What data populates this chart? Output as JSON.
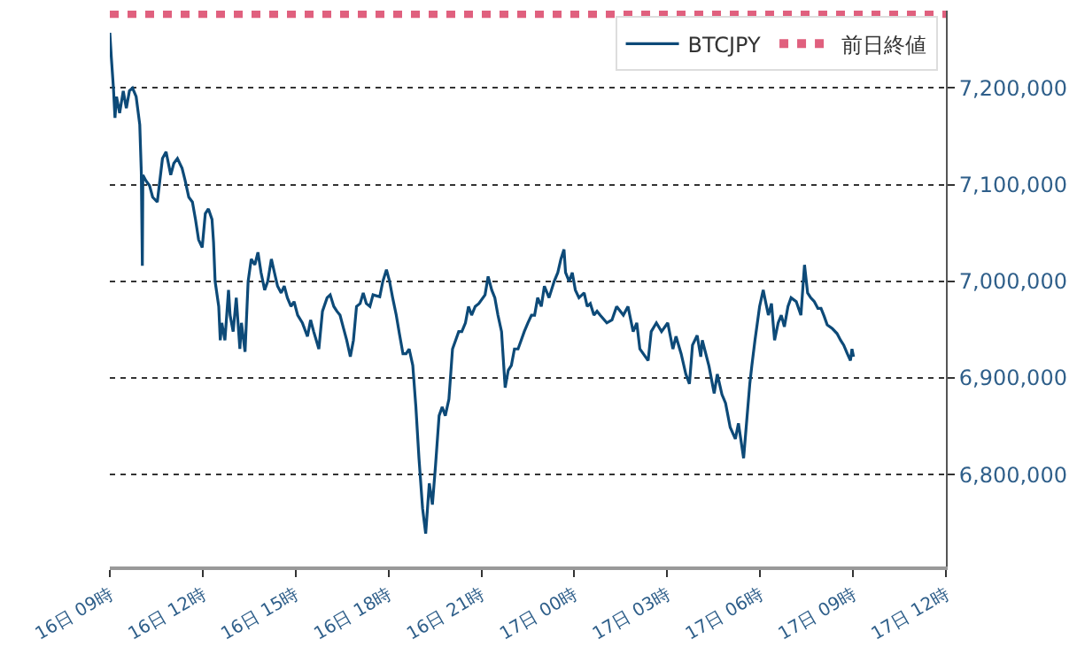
{
  "chart_data": {
    "type": "line",
    "series": [
      {
        "name": "BTCJPY",
        "color": "#0d4a78",
        "x": [
          "--01-16T09:00",
          "--01-16T09:03",
          "--01-16T09:07",
          "--01-16T09:10",
          "--01-16T09:13",
          "--01-16T09:19",
          "--01-16T09:26",
          "--01-16T09:32",
          "--01-16T09:38",
          "--01-16T09:44",
          "--01-16T09:51",
          "--01-16T09:58",
          "--01-16T10:01",
          "--01-16T10:03",
          "--01-16T10:04",
          "--01-16T10:10",
          "--01-16T10:17",
          "--01-16T10:23",
          "--01-16T10:32",
          "--01-16T10:42",
          "--01-16T10:49",
          "--01-16T10:58",
          "--01-16T11:04",
          "--01-16T11:11",
          "--01-16T11:20",
          "--01-16T11:26",
          "--01-16T11:33",
          "--01-16T11:40",
          "--01-16T11:46",
          "--01-16T11:52",
          "--01-16T11:59",
          "--01-16T12:05",
          "--01-16T12:11",
          "--01-16T12:18",
          "--01-16T12:21",
          "--01-16T12:24",
          "--01-16T12:31",
          "--01-16T12:34",
          "--01-16T12:37",
          "--01-16T12:43",
          "--01-16T12:50",
          "--01-16T12:53",
          "--01-16T12:59",
          "--01-16T13:05",
          "--01-16T13:12",
          "--01-16T13:15",
          "--01-16T13:22",
          "--01-16T13:28",
          "--01-16T13:34",
          "--01-16T13:41",
          "--01-16T13:47",
          "--01-16T13:53",
          "--01-16T14:00",
          "--01-16T14:06",
          "--01-16T14:13",
          "--01-16T14:19",
          "--01-16T14:25",
          "--01-16T14:32",
          "--01-16T14:38",
          "--01-16T14:44",
          "--01-16T14:51",
          "--01-16T14:57",
          "--01-16T15:04",
          "--01-16T15:13",
          "--01-16T15:23",
          "--01-16T15:29",
          "--01-16T15:35",
          "--01-16T15:45",
          "--01-16T15:52",
          "--01-16T16:01",
          "--01-16T16:07",
          "--01-16T16:14",
          "--01-16T16:20",
          "--01-16T16:26",
          "--01-16T16:33",
          "--01-16T16:39",
          "--01-16T16:46",
          "--01-16T16:52",
          "--01-16T16:58",
          "--01-16T17:05",
          "--01-16T17:11",
          "--01-16T17:17",
          "--01-16T17:24",
          "--01-16T17:30",
          "--01-16T17:43",
          "--01-16T17:49",
          "--01-16T17:56",
          "--01-16T18:02",
          "--01-16T18:08",
          "--01-16T18:15",
          "--01-16T18:21",
          "--01-16T18:28",
          "--01-16T18:34",
          "--01-16T18:40",
          "--01-16T18:47",
          "--01-16T18:53",
          "--01-16T18:59",
          "--01-16T19:06",
          "--01-16T19:12",
          "--01-16T19:19",
          "--01-16T19:25",
          "--01-16T19:31",
          "--01-16T19:38",
          "--01-16T19:44",
          "--01-16T19:50",
          "--01-16T19:57",
          "--01-16T20:04",
          "--01-16T20:10",
          "--01-16T20:16",
          "--01-16T20:22",
          "--01-16T20:29",
          "--01-16T20:35",
          "--01-16T20:41",
          "--01-16T20:48",
          "--01-16T20:55",
          "--01-16T21:07",
          "--01-16T21:13",
          "--01-16T21:20",
          "--01-16T21:26",
          "--01-16T21:32",
          "--01-16T21:39",
          "--01-16T21:46",
          "--01-16T21:52",
          "--01-16T21:58",
          "--01-16T22:04",
          "--01-16T22:11",
          "--01-16T22:17",
          "--01-16T22:23",
          "--01-16T22:30",
          "--01-16T22:37",
          "--01-16T22:43",
          "--01-16T22:49",
          "--01-16T22:56",
          "--01-16T23:02",
          "--01-16T23:11",
          "--01-16T23:21",
          "--01-16T23:28",
          "--01-16T23:34",
          "--01-16T23:40",
          "--01-16T23:43",
          "--01-16T23:50",
          "--01-16T23:56",
          "--01-17T00:02",
          "--01-17T00:09",
          "--01-17T00:19",
          "--01-17T00:25",
          "--01-17T00:31",
          "--01-17T00:38",
          "--01-17T00:44",
          "--01-17T00:50",
          "--01-17T01:03",
          "--01-17T01:13",
          "--01-17T01:22",
          "--01-17T01:35",
          "--01-17T01:44",
          "--01-17T01:54",
          "--01-17T02:01",
          "--01-17T02:07",
          "--01-17T02:23",
          "--01-17T02:29",
          "--01-17T02:39",
          "--01-17T02:49",
          "--01-17T03:01",
          "--01-17T03:11",
          "--01-17T03:17",
          "--01-17T03:27",
          "--01-17T03:36",
          "--01-17T03:43",
          "--01-17T03:49",
          "--01-17T03:58",
          "--01-17T04:05",
          "--01-17T04:08",
          "--01-17T04:21",
          "--01-17T04:31",
          "--01-17T04:37",
          "--01-17T04:46",
          "--01-17T04:53",
          "--01-17T05:02",
          "--01-17T05:12",
          "--01-17T05:18",
          "--01-17T05:28",
          "--01-17T05:40",
          "--01-17T05:44",
          "--01-17T05:50",
          "--01-17T05:59",
          "--01-17T06:06",
          "--01-17T06:09",
          "--01-17T06:16",
          "--01-17T06:22",
          "--01-17T06:28",
          "--01-17T06:35",
          "--01-17T06:41",
          "--01-17T06:47",
          "--01-17T06:54",
          "--01-17T07:00",
          "--01-17T07:10",
          "--01-17T07:19",
          "--01-17T07:26",
          "--01-17T07:32",
          "--01-17T07:38",
          "--01-17T07:45",
          "--01-17T07:52",
          "--01-17T07:58",
          "--01-17T08:04",
          "--01-17T08:10",
          "--01-17T08:20",
          "--01-17T08:29",
          "--01-17T08:36",
          "--01-17T08:42",
          "--01-17T08:49",
          "--01-17T08:55",
          "--01-17T08:58",
          "--01-17T09:01"
        ],
        "values": [
          7257000,
          7231000,
          7200000,
          7169000,
          7191000,
          7174000,
          7197000,
          7179000,
          7197000,
          7200000,
          7191000,
          7162000,
          7113000,
          7016000,
          7110000,
          7104000,
          7099000,
          7087000,
          7082000,
          7127000,
          7134000,
          7110000,
          7122000,
          7127000,
          7117000,
          7104000,
          7087000,
          7082000,
          7064000,
          7043000,
          7035000,
          7070000,
          7075000,
          7064000,
          7040000,
          7000000,
          6974000,
          6939000,
          6957000,
          6939000,
          6991000,
          6965000,
          6948000,
          6983000,
          6930000,
          6957000,
          6927000,
          7000000,
          7023000,
          7017000,
          7030000,
          7009000,
          6991000,
          7000000,
          7023000,
          7009000,
          6995000,
          6988000,
          6995000,
          6983000,
          6974000,
          6979000,
          6965000,
          6957000,
          6943000,
          6960000,
          6948000,
          6930000,
          6969000,
          6983000,
          6986000,
          6974000,
          6969000,
          6965000,
          6951000,
          6939000,
          6922000,
          6939000,
          6974000,
          6977000,
          6988000,
          6977000,
          6974000,
          6986000,
          6984000,
          7000000,
          7012000,
          7000000,
          6983000,
          6965000,
          6946000,
          6925000,
          6925000,
          6930000,
          6913000,
          6870000,
          6817000,
          6765000,
          6739000,
          6791000,
          6769000,
          6809000,
          6861000,
          6870000,
          6861000,
          6878000,
          6930000,
          6939000,
          6948000,
          6948000,
          6957000,
          6974000,
          6965000,
          6974000,
          6977000,
          6986000,
          7005000,
          6991000,
          6983000,
          6965000,
          6948000,
          6890000,
          6908000,
          6913000,
          6930000,
          6930000,
          6939000,
          6948000,
          6957000,
          6965000,
          6965000,
          6983000,
          6974000,
          6995000,
          6983000,
          7000000,
          7009000,
          7023000,
          7033000,
          7009000,
          7000000,
          7009000,
          6991000,
          6983000,
          6988000,
          6974000,
          6977000,
          6965000,
          6969000,
          6965000,
          6957000,
          6960000,
          6974000,
          6965000,
          6974000,
          6948000,
          6957000,
          6930000,
          6918000,
          6948000,
          6957000,
          6948000,
          6957000,
          6930000,
          6943000,
          6925000,
          6904000,
          6894000,
          6934000,
          6944000,
          6922000,
          6939000,
          6912000,
          6884000,
          6904000,
          6883000,
          6874000,
          6849000,
          6837000,
          6853000,
          6817000,
          6894000,
          6913000,
          6939000,
          6974000,
          6991000,
          6983000,
          6965000,
          6977000,
          6939000,
          6957000,
          6965000,
          6953000,
          6974000,
          6983000,
          6979000,
          6965000,
          7017000,
          6988000,
          6983000,
          6979000,
          6972000,
          6972000,
          6964000,
          6955000,
          6951000,
          6946000,
          6939000,
          6934000,
          6925000,
          6918000,
          6930000,
          6922000
        ]
      }
    ],
    "ylim": [
      6705000,
      7280000
    ],
    "yticks": [
      {
        "value": 6800000,
        "label": "6,800,000"
      },
      {
        "value": 6900000,
        "label": "6,900,000"
      },
      {
        "value": 7000000,
        "label": "7,000,000"
      },
      {
        "value": 7100000,
        "label": "7,100,000"
      },
      {
        "value": 7200000,
        "label": "7,200,000"
      }
    ],
    "xlim": [
      "--01-16T09:00",
      "--01-17T12:00"
    ],
    "xticks": [
      {
        "value": "--01-16T09:00",
        "label": "16日 09時"
      },
      {
        "value": "--01-16T12:00",
        "label": "16日 12時"
      },
      {
        "value": "--01-16T15:00",
        "label": "16日 15時"
      },
      {
        "value": "--01-16T18:00",
        "label": "16日 18時"
      },
      {
        "value": "--01-16T21:00",
        "label": "16日 21時"
      },
      {
        "value": "--01-17T00:00",
        "label": "17日 00時"
      },
      {
        "value": "--01-17T03:00",
        "label": "17日 03時"
      },
      {
        "value": "--01-17T06:00",
        "label": "17日 06時"
      },
      {
        "value": "--01-17T09:00",
        "label": "17日 09時"
      },
      {
        "value": "--01-17T12:00",
        "label": "17日 12時"
      }
    ],
    "ref_lines": [
      {
        "axis": "y",
        "value": 7277000,
        "label": "前日終値",
        "color": "#e0607e",
        "line_style": "dotted"
      }
    ],
    "grid": "y",
    "legend": "top right",
    "marker": "none",
    "line_style": "solid"
  }
}
